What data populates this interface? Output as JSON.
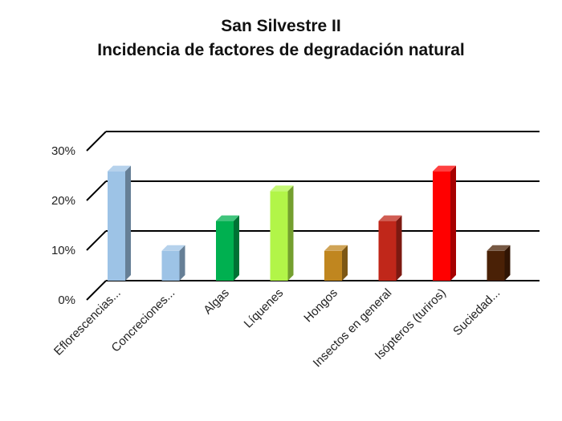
{
  "chart_data": {
    "type": "bar",
    "title_lines": [
      "San Silvestre II",
      "Incidencia de factores de degradación natural"
    ],
    "categories": [
      "Eflorescencias...",
      "Concreciones...",
      "Algas",
      "Líquenes",
      "Hongos",
      "Insectos en general",
      "Isópteros (turiros)",
      "Suciedad..."
    ],
    "values": [
      22,
      6,
      12,
      18,
      6,
      12,
      22,
      6
    ],
    "value_unit": "%",
    "ylim": [
      0,
      30
    ],
    "yticks": [
      {
        "value": 0,
        "label": "0%"
      },
      {
        "value": 10,
        "label": "10%"
      },
      {
        "value": 20,
        "label": "20%"
      },
      {
        "value": 30,
        "label": "30%"
      }
    ],
    "grid": true,
    "legend": "none",
    "colors": [
      "#9dc3e6",
      "#9dc3e6",
      "#00b050",
      "#b2f548",
      "#c0861f",
      "#c0271a",
      "#ff0000",
      "#4a2106"
    ]
  }
}
